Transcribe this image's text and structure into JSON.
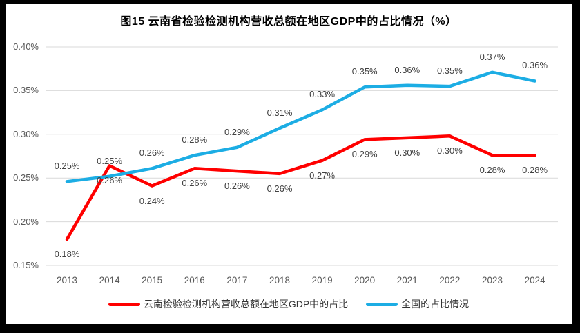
{
  "chart_data": {
    "type": "line",
    "title": "图15 云南省检验检测机构营收总额在地区GDP中的占比情况（%）",
    "categories": [
      "2013",
      "2014",
      "2015",
      "2016",
      "2017",
      "2018",
      "2019",
      "2020",
      "2021",
      "2022",
      "2023",
      "2024"
    ],
    "y_axis": {
      "min": 0.15,
      "max": 0.4,
      "step": 0.05,
      "ticks": [
        "0.40%",
        "0.35%",
        "0.30%",
        "0.25%",
        "0.20%",
        "0.15%"
      ],
      "unit": "%"
    },
    "grid": true,
    "legend_position": "bottom",
    "series": [
      {
        "id": "yunnan",
        "name": "云南检验检测机构营收总额在地区GDP中的占比",
        "color": "#FF0000",
        "label_position": "below",
        "labels": [
          "0.18%",
          "0.26%",
          "0.24%",
          "0.26%",
          "0.26%",
          "0.26%",
          "0.27%",
          "0.29%",
          "0.30%",
          "0.30%",
          "0.28%",
          "0.28%"
        ],
        "values": [
          0.18,
          0.264,
          0.241,
          0.261,
          0.258,
          0.255,
          0.27,
          0.294,
          0.296,
          0.298,
          0.276,
          0.276
        ]
      },
      {
        "id": "national",
        "name": "全国的占比情况",
        "color": "#1CADE4",
        "label_position": "above",
        "labels": [
          "0.25%",
          "0.25%",
          "0.26%",
          "0.28%",
          "0.29%",
          "0.31%",
          "0.33%",
          "0.35%",
          "0.36%",
          "0.35%",
          "0.37%",
          "0.36%"
        ],
        "values": [
          0.246,
          0.252,
          0.261,
          0.276,
          0.285,
          0.307,
          0.328,
          0.354,
          0.356,
          0.355,
          0.371,
          0.361
        ]
      }
    ]
  },
  "colors": {
    "yunnan_series": "#FF0000",
    "national_series": "#1CADE4",
    "grid": "#D9D9D9",
    "axis_text": "#595959",
    "data_label_text": "#404040",
    "title_text": "#000000",
    "frame_border": "#000000",
    "background": "#FFFFFF"
  }
}
